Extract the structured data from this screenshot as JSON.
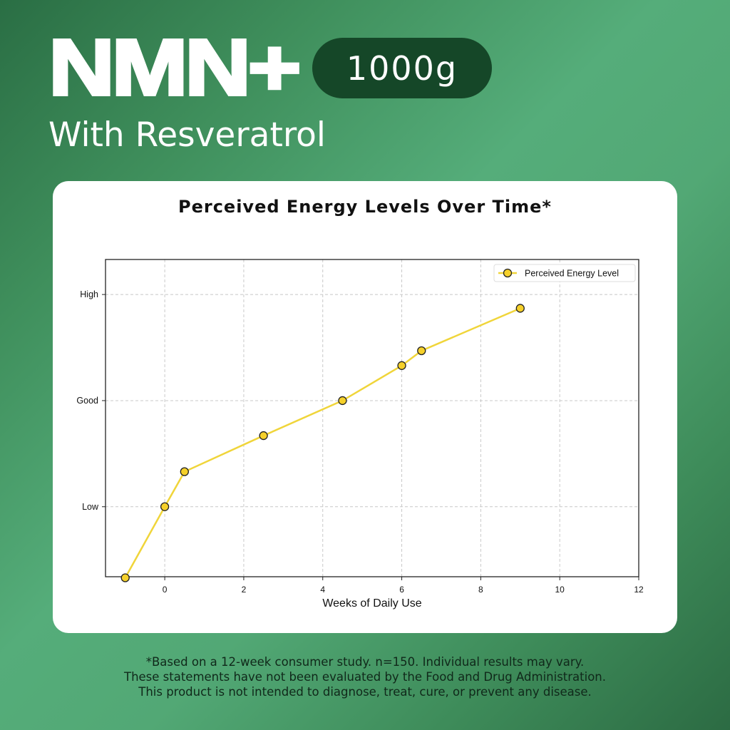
{
  "header": {
    "product_name": "NMN+",
    "size_badge": "1000g",
    "subtitle": "With Resveratrol"
  },
  "card": {
    "chart_title": "Perceived Energy Levels Over Time*"
  },
  "footer": {
    "lines": [
      "*Based on a 12-week consumer study. n=150. Individual results may vary.",
      "These statements have not been evaluated by the Food and Drug Administration.",
      "This product is not intended to diagnose, treat, cure, or prevent any disease."
    ]
  },
  "colors": {
    "line": "#f0d53a",
    "marker_fill": "#f5d02a",
    "marker_edge": "#222222",
    "badge_bg": "#154728",
    "card_bg": "#ffffff"
  },
  "chart_data": {
    "type": "line",
    "title": "Perceived Energy Levels Over Time*",
    "xlabel": "Weeks of Daily Use",
    "ylabel": "",
    "x": [
      -1,
      0,
      0.5,
      2.5,
      4.5,
      6,
      6.5,
      9
    ],
    "series": [
      {
        "name": "Perceived Energy Level",
        "values": [
          0.33,
          1.0,
          1.33,
          1.67,
          2.0,
          2.33,
          2.47,
          2.87
        ]
      }
    ],
    "xlim": [
      -1.5,
      12
    ],
    "ylim": [
      0.34,
      3.33
    ],
    "xticks": [
      0,
      2,
      4,
      6,
      8,
      10,
      12
    ],
    "yticks": [
      {
        "value": 1,
        "label": "Low"
      },
      {
        "value": 2,
        "label": "Good"
      },
      {
        "value": 3,
        "label": "High"
      }
    ],
    "grid": true,
    "grid_style": "dashed",
    "legend_position": "upper right"
  }
}
